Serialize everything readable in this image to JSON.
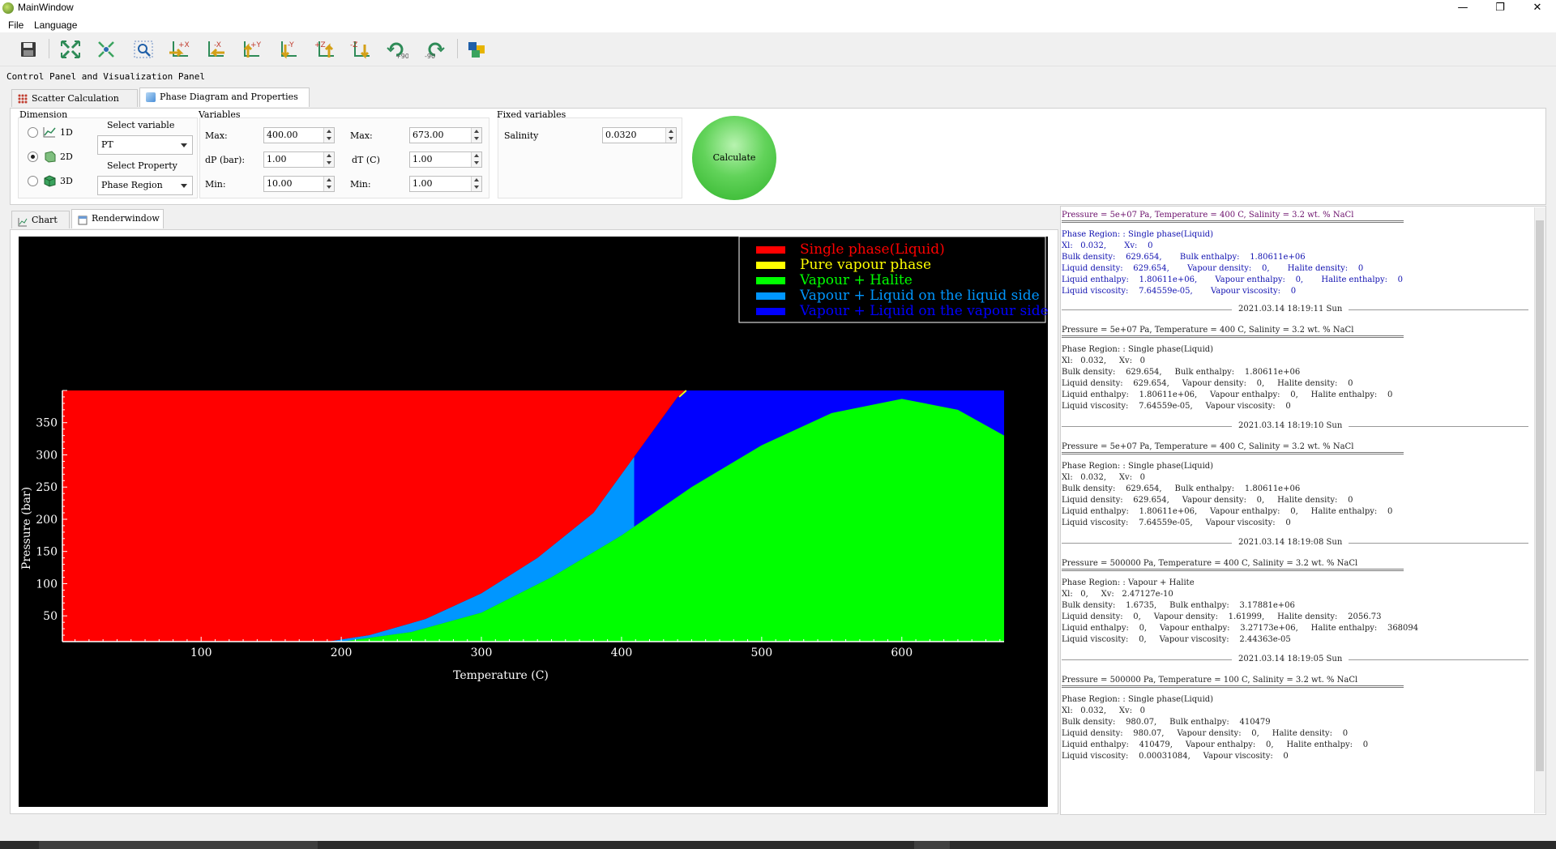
{
  "window": {
    "title": "MainWindow",
    "controls": [
      "—",
      "❐",
      "✕"
    ]
  },
  "menubar": {
    "items": [
      "File",
      "Language"
    ]
  },
  "toolbar": {
    "buttons": [
      {
        "icon": "save-icon"
      },
      {
        "icon": "fit-view-icon"
      },
      {
        "icon": "center-view-icon"
      },
      {
        "icon": "zoom-icon"
      },
      {
        "icon": "view-plus-x-icon",
        "label": "+X"
      },
      {
        "icon": "view-minus-x-icon",
        "label": "-X"
      },
      {
        "icon": "view-plus-y-icon",
        "label": "+Y"
      },
      {
        "icon": "view-minus-y-icon",
        "label": "-Y"
      },
      {
        "icon": "view-plus-z-icon",
        "label": "+Z"
      },
      {
        "icon": "view-minus-z-icon",
        "label": "-Z"
      },
      {
        "icon": "rotate-cw-icon",
        "label": "+90"
      },
      {
        "icon": "rotate-ccw-icon",
        "label": "-90"
      },
      {
        "icon": "color-settings-icon"
      }
    ]
  },
  "panel_caption": "Control Panel and Visualization Panel",
  "top_tabs": [
    {
      "label": "Scatter Calculation",
      "active": false
    },
    {
      "label": "Phase Diagram and Properties",
      "active": true
    }
  ],
  "dimension": {
    "title": "Dimension",
    "options": [
      {
        "label": "1D",
        "selected": false
      },
      {
        "label": "2D",
        "selected": true
      },
      {
        "label": "3D",
        "selected": false
      }
    ]
  },
  "select_variable": {
    "label": "Select variable",
    "value": "PT"
  },
  "select_property": {
    "label": "Select Property",
    "value": "Phase Region"
  },
  "variables": {
    "title": "Variables",
    "left": [
      {
        "label": "Max:",
        "value": "400.00"
      },
      {
        "label": "dP (bar):",
        "value": "1.00"
      },
      {
        "label": "Min:",
        "value": "10.00"
      }
    ],
    "right": [
      {
        "label": "Max:",
        "value": "673.00"
      },
      {
        "label": "dT (C)",
        "value": "1.00"
      },
      {
        "label": "Min:",
        "value": "1.00"
      }
    ]
  },
  "fixed_variables": {
    "title": "Fixed variables",
    "salinity_label": "Salinity",
    "salinity_value": "0.0320"
  },
  "calculate_label": "Calculate",
  "bottom_tabs": [
    {
      "label": "Chart",
      "active": false
    },
    {
      "label": "Renderwindow",
      "active": true
    }
  ],
  "chart_data": {
    "type": "area",
    "xlabel": "Temperature (C)",
    "ylabel": "Pressure (bar)",
    "xlim": [
      1,
      673
    ],
    "ylim": [
      10,
      400
    ],
    "xticks": [
      100,
      200,
      300,
      400,
      500,
      600
    ],
    "yticks": [
      50,
      100,
      150,
      200,
      250,
      300,
      350
    ],
    "background": "#000000",
    "legend_position": "top-right",
    "legend": [
      {
        "label": "Single phase(Liquid)",
        "color": "#ff0000"
      },
      {
        "label": "Pure vapour phase",
        "color": "#ffff00"
      },
      {
        "label": "Vapour + Halite",
        "color": "#00ff00"
      },
      {
        "label": "Vapour + Liquid on the liquid side",
        "color": "#0096ff"
      },
      {
        "label": "Vapour + Liquid on the vapour side",
        "color": "#0000ff"
      }
    ],
    "boundaries": {
      "liquid_upper": [
        [
          190,
          10
        ],
        [
          220,
          20
        ],
        [
          260,
          45
        ],
        [
          300,
          85
        ],
        [
          340,
          140
        ],
        [
          380,
          210
        ],
        [
          410,
          300
        ],
        [
          440,
          390
        ],
        [
          445,
          400
        ]
      ],
      "halite_upper": [
        [
          200,
          10
        ],
        [
          250,
          25
        ],
        [
          300,
          55
        ],
        [
          350,
          110
        ],
        [
          400,
          175
        ],
        [
          450,
          250
        ],
        [
          500,
          315
        ],
        [
          550,
          365
        ],
        [
          600,
          387
        ],
        [
          640,
          370
        ],
        [
          673,
          330
        ]
      ],
      "vl_split_temperature": 409
    }
  },
  "log": {
    "current": {
      "header": "Pressure = 5e+07 Pa, Temperature = 400 C, Salinity = 3.2 wt. % NaCl",
      "lines": [
        "Phase Region: : Single phase(Liquid)",
        "Xl:   0.032,       Xv:    0",
        "Bulk density:    629.654,       Bulk enthalpy:    1.80611e+06",
        "Liquid density:    629.654,       Vapour density:    0,       Halite density:    0",
        "Liquid enthalpy:    1.80611e+06,       Vapour enthalpy:    0,       Halite enthalpy:    0",
        "Liquid viscosity:    7.64559e-05,       Vapour viscosity:    0"
      ]
    },
    "history": [
      {
        "timestamp": "2021.03.14 18:19:11 Sun",
        "header": "Pressure = 5e+07 Pa, Temperature = 400 C, Salinity = 3.2 wt. % NaCl",
        "lines": [
          "Phase Region: : Single phase(Liquid)",
          "Xl:   0.032,     Xv:   0",
          "Bulk density:    629.654,     Bulk enthalpy:    1.80611e+06",
          "Liquid density:    629.654,     Vapour density:    0,     Halite density:    0",
          "Liquid enthalpy:    1.80611e+06,     Vapour enthalpy:    0,     Halite enthalpy:    0",
          "Liquid viscosity:    7.64559e-05,     Vapour viscosity:    0"
        ]
      },
      {
        "timestamp": "2021.03.14 18:19:10 Sun",
        "header": "Pressure = 5e+07 Pa, Temperature = 400 C, Salinity = 3.2 wt. % NaCl",
        "lines": [
          "Phase Region: : Single phase(Liquid)",
          "Xl:   0.032,     Xv:   0",
          "Bulk density:    629.654,     Bulk enthalpy:    1.80611e+06",
          "Liquid density:    629.654,     Vapour density:    0,     Halite density:    0",
          "Liquid enthalpy:    1.80611e+06,     Vapour enthalpy:    0,     Halite enthalpy:    0",
          "Liquid viscosity:    7.64559e-05,     Vapour viscosity:    0"
        ]
      },
      {
        "timestamp": "2021.03.14 18:19:08 Sun",
        "header": "Pressure = 500000 Pa, Temperature = 400 C, Salinity = 3.2 wt. % NaCl",
        "lines": [
          "Phase Region: : Vapour + Halite",
          "Xl:   0,     Xv:   2.47127e-10",
          "Bulk density:    1.6735,     Bulk enthalpy:    3.17881e+06",
          "Liquid density:    0,     Vapour density:    1.61999,     Halite density:    2056.73",
          "Liquid enthalpy:    0,     Vapour enthalpy:    3.27173e+06,     Halite enthalpy:    368094",
          "Liquid viscosity:    0,     Vapour viscosity:    2.44363e-05"
        ]
      },
      {
        "timestamp": "2021.03.14 18:19:05 Sun",
        "header": "Pressure = 500000 Pa, Temperature = 100 C, Salinity = 3.2 wt. % NaCl",
        "lines": [
          "Phase Region: : Single phase(Liquid)",
          "Xl:   0.032,     Xv:   0",
          "Bulk density:    980.07,     Bulk enthalpy:    410479",
          "Liquid density:    980.07,     Vapour density:    0,     Halite density:    0",
          "Liquid enthalpy:    410479,     Vapour enthalpy:    0,     Halite enthalpy:    0",
          "Liquid viscosity:    0.00031084,     Vapour viscosity:    0"
        ]
      }
    ]
  }
}
